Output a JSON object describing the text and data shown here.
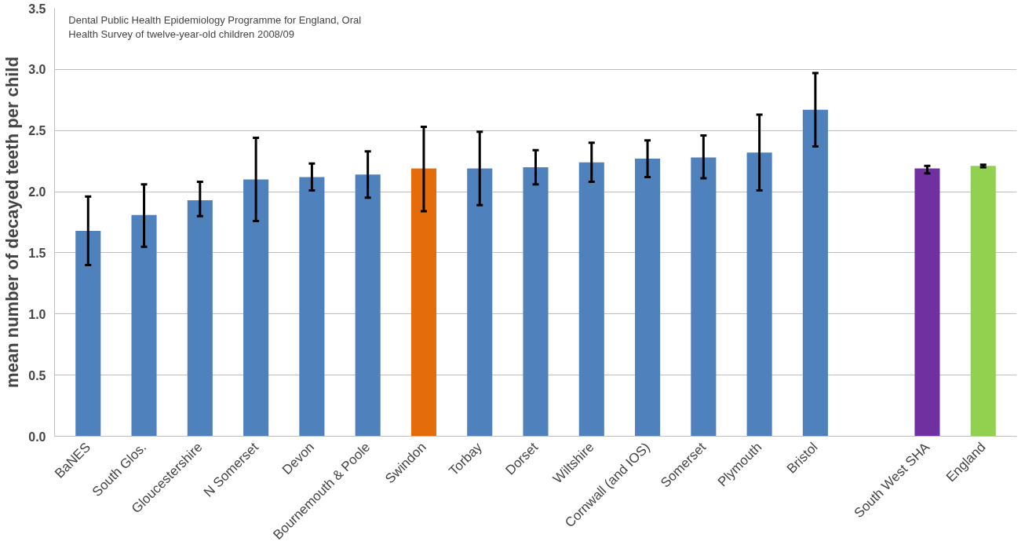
{
  "chart_data": {
    "type": "bar",
    "ylabel": "mean number of decayed teeth per child",
    "annotations": [
      "Dental Public Health Epidemiology Programme for England, Oral\nHealth Survey of twelve-year-old  children 2008/09"
    ],
    "categories": [
      "BaNES",
      "South Glos.",
      "Gloucestershire",
      "N Somerset",
      "Devon",
      "Bournemouth & Poole",
      "Swindon",
      "Torbay",
      "Dorset",
      "Wiltshire",
      "Cornwall (and IOS)",
      "Somerset",
      "Plymouth",
      "Bristol",
      null,
      "South West SHA",
      "England"
    ],
    "values": [
      1.68,
      1.81,
      1.93,
      2.1,
      2.12,
      2.14,
      2.19,
      2.19,
      2.2,
      2.24,
      2.27,
      2.28,
      2.32,
      2.67,
      null,
      2.19,
      2.21
    ],
    "errors": [
      [
        1.4,
        1.96
      ],
      [
        1.55,
        2.06
      ],
      [
        1.8,
        2.08
      ],
      [
        1.76,
        2.44
      ],
      [
        2.01,
        2.23
      ],
      [
        1.95,
        2.33
      ],
      [
        1.84,
        2.53
      ],
      [
        1.89,
        2.49
      ],
      [
        2.06,
        2.34
      ],
      [
        2.08,
        2.4
      ],
      [
        2.12,
        2.42
      ],
      [
        2.11,
        2.46
      ],
      [
        2.01,
        2.63
      ],
      [
        2.37,
        2.97
      ],
      null,
      [
        2.15,
        2.21
      ],
      [
        2.2,
        2.22
      ]
    ],
    "colors": [
      "#4f81bd",
      "#4f81bd",
      "#4f81bd",
      "#4f81bd",
      "#4f81bd",
      "#4f81bd",
      "#e46c0a",
      "#4f81bd",
      "#4f81bd",
      "#4f81bd",
      "#4f81bd",
      "#4f81bd",
      "#4f81bd",
      "#4f81bd",
      "#4f81bd",
      "#7030a0",
      "#92d050"
    ],
    "ylim": [
      0,
      3.5
    ],
    "yticks": [
      {
        "value": 0,
        "label": "0.0"
      },
      {
        "value": 0.5,
        "label": "0.5"
      },
      {
        "value": 1,
        "label": "1.0"
      },
      {
        "value": 1.5,
        "label": "1.5"
      },
      {
        "value": 2,
        "label": "2.0"
      },
      {
        "value": 2.5,
        "label": "2.5"
      },
      {
        "value": 3,
        "label": "3.0"
      },
      {
        "value": 3.5,
        "label": "3.5"
      }
    ],
    "grid": "y"
  }
}
